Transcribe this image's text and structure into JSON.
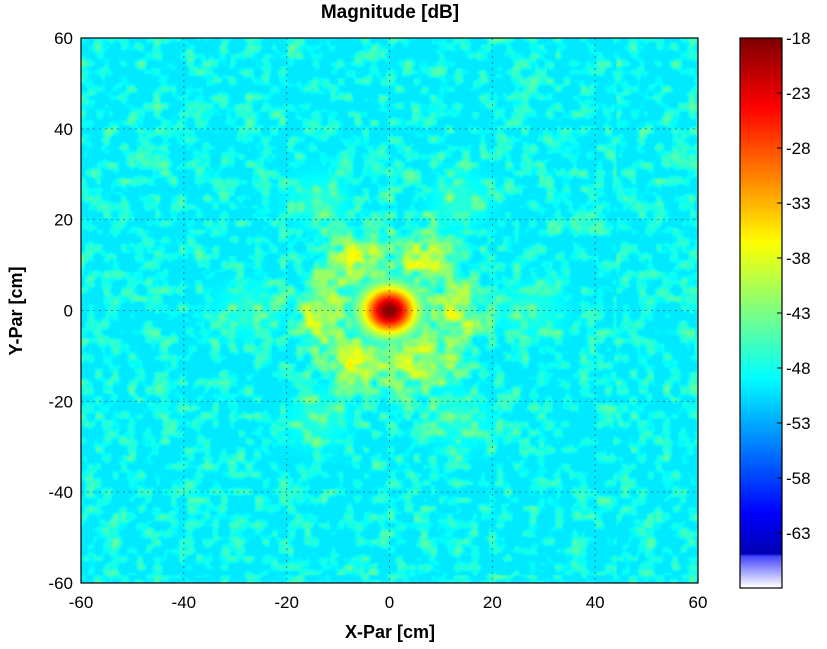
{
  "chart_data": {
    "type": "heatmap",
    "title": "Magnitude [dB]",
    "xlabel": "X-Par [cm]",
    "ylabel": "Y-Par [cm]",
    "xlim": [
      -60,
      60
    ],
    "ylim": [
      -60,
      60
    ],
    "x_ticks": [
      -60,
      -40,
      -20,
      0,
      20,
      40,
      60
    ],
    "y_ticks": [
      60,
      40,
      20,
      0,
      -20,
      -40,
      -60
    ],
    "grid": true,
    "colorbar": {
      "min": -68,
      "max": -18,
      "ticks": [
        -18,
        -23,
        -28,
        -33,
        -38,
        -43,
        -48,
        -53,
        -58,
        -63
      ],
      "colormap": "jet"
    },
    "features": {
      "peak_value_db": -18,
      "peak_location": [
        0,
        0
      ],
      "background_level_db": -50,
      "ring_radius_cm": 13,
      "ring_level_db": -38,
      "ring_lobes": 6
    },
    "colors": {
      "jet_dark_blue": "#00008f",
      "jet_blue": "#0000ff",
      "jet_cyan": "#00ffff",
      "jet_yellow": "#ffff00",
      "jet_red": "#ff0000",
      "jet_dark_red": "#800000"
    }
  }
}
